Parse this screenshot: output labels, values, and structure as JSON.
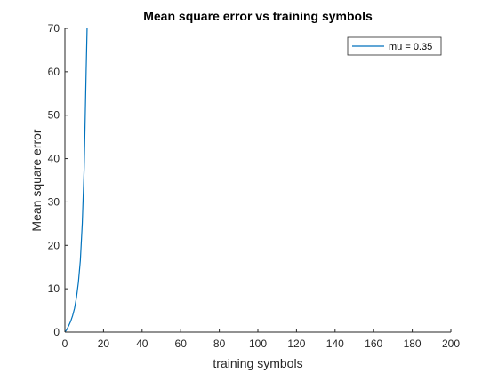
{
  "chart_data": {
    "type": "line",
    "title": "Mean square error vs training symbols",
    "xlabel": "training symbols",
    "ylabel": "Mean square error",
    "xlim": [
      0,
      200
    ],
    "ylim": [
      0,
      70
    ],
    "xticks": [
      0,
      20,
      40,
      60,
      80,
      100,
      120,
      140,
      160,
      180,
      200
    ],
    "yticks": [
      0,
      10,
      20,
      30,
      40,
      50,
      60,
      70
    ],
    "grid": false,
    "legend_position": "top-right",
    "series": [
      {
        "name": "mu = 0.35",
        "color": "#0072BD",
        "x": [
          0,
          1,
          2,
          3,
          4,
          5,
          6,
          7,
          8,
          9,
          10,
          11,
          11.5
        ],
        "y": [
          0,
          0.6,
          1.5,
          2.5,
          3.8,
          5.5,
          8,
          11.5,
          16.5,
          25,
          38,
          60,
          70
        ]
      }
    ]
  }
}
